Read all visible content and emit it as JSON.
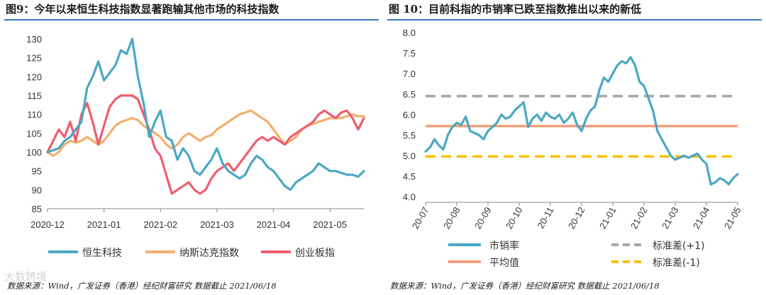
{
  "left": {
    "title": "图9：今年以来恒生科技指数显著跑输其他市场的科技指数",
    "source": "数据来源：Wind，广发证券（香港）经纪财富研究  数据截止 2021/06/18",
    "watermark": "大数跨境"
  },
  "right": {
    "title": "图 10：目前科指的市销率已跌至指数推出以来的新低",
    "source": "数据来源：Wind，广发证券（香港）经纪财富研究  数据截止 2021/06/18"
  },
  "colors": {
    "hstech": "#4aa8c4",
    "nasdaq": "#f5ae6e",
    "chinext": "#ef5d6e",
    "ps": "#4aa8c4",
    "mean": "#f0a07a",
    "plus": "#a6a6a6",
    "minus": "#f7c000"
  },
  "chart_data": [
    {
      "type": "line",
      "title": "图9：今年以来恒生科技指数显著跑输其他市场的科技指数",
      "ylim": [
        85,
        130
      ],
      "yticks": [
        85,
        90,
        95,
        100,
        105,
        110,
        115,
        120,
        125,
        130
      ],
      "xtick_labels": [
        "2020-12",
        "2021-01",
        "2021-02",
        "2021-03",
        "2021-04",
        "2021-05"
      ],
      "x_range": [
        0,
        5.6
      ],
      "legend_position": "bottom",
      "series": [
        {
          "name": "恒生科技",
          "x": [
            0,
            0.1,
            0.2,
            0.3,
            0.4,
            0.5,
            0.6,
            0.7,
            0.8,
            0.9,
            1,
            1.1,
            1.2,
            1.3,
            1.4,
            1.5,
            1.6,
            1.7,
            1.8,
            1.9,
            2,
            2.1,
            2.2,
            2.3,
            2.4,
            2.5,
            2.6,
            2.7,
            2.8,
            2.9,
            3,
            3.1,
            3.2,
            3.3,
            3.4,
            3.5,
            3.6,
            3.7,
            3.8,
            3.9,
            4,
            4.1,
            4.2,
            4.3,
            4.4,
            4.5,
            4.6,
            4.7,
            4.8,
            4.9,
            5,
            5.1,
            5.2,
            5.3,
            5.4,
            5.5,
            5.6
          ],
          "values": [
            100,
            100.5,
            101,
            103,
            104,
            106,
            108,
            117,
            120,
            124,
            119,
            121,
            123,
            127,
            126,
            130,
            120,
            113,
            104,
            108,
            111,
            104,
            103,
            98,
            101,
            99,
            95,
            94,
            96,
            98,
            101,
            97,
            95,
            94,
            93,
            94,
            97,
            99,
            98,
            96,
            95,
            93,
            91,
            90,
            92,
            93,
            94,
            95,
            97,
            96,
            95,
            95,
            94.5,
            94,
            94,
            93.5,
            95
          ]
        },
        {
          "name": "纳斯达克指数",
          "x": [
            0,
            0.1,
            0.2,
            0.3,
            0.4,
            0.5,
            0.6,
            0.7,
            0.8,
            0.9,
            1,
            1.1,
            1.2,
            1.3,
            1.4,
            1.5,
            1.6,
            1.7,
            1.8,
            1.9,
            2,
            2.1,
            2.2,
            2.3,
            2.4,
            2.5,
            2.6,
            2.7,
            2.8,
            2.9,
            3,
            3.1,
            3.2,
            3.3,
            3.4,
            3.5,
            3.6,
            3.7,
            3.8,
            3.9,
            4,
            4.1,
            4.2,
            4.3,
            4.4,
            4.5,
            4.6,
            4.7,
            4.8,
            4.9,
            5,
            5.1,
            5.2,
            5.3,
            5.4,
            5.5,
            5.6
          ],
          "values": [
            100,
            99,
            100,
            102,
            103,
            102.5,
            103,
            104,
            103,
            102,
            103,
            105,
            107,
            108,
            108.5,
            109,
            108.5,
            107,
            106,
            105,
            104,
            102,
            101,
            102,
            104,
            105,
            104,
            103,
            104,
            104.5,
            106,
            107,
            108,
            109,
            110,
            110.5,
            111,
            110,
            109,
            108,
            106,
            104,
            102,
            103,
            104,
            106,
            107,
            107.5,
            108,
            108.5,
            109,
            109,
            109,
            109.5,
            110,
            109.5,
            109.5
          ]
        },
        {
          "name": "创业板指",
          "x": [
            0,
            0.1,
            0.2,
            0.3,
            0.4,
            0.5,
            0.6,
            0.7,
            0.8,
            0.9,
            1,
            1.1,
            1.2,
            1.3,
            1.4,
            1.5,
            1.6,
            1.7,
            1.8,
            1.9,
            2,
            2.1,
            2.2,
            2.3,
            2.4,
            2.5,
            2.6,
            2.7,
            2.8,
            2.9,
            3,
            3.1,
            3.2,
            3.3,
            3.4,
            3.5,
            3.6,
            3.7,
            3.8,
            3.9,
            4,
            4.1,
            4.2,
            4.3,
            4.4,
            4.5,
            4.6,
            4.7,
            4.8,
            4.9,
            5,
            5.1,
            5.2,
            5.3,
            5.4,
            5.5,
            5.6
          ],
          "values": [
            100,
            103,
            106,
            104,
            108,
            103,
            110,
            113,
            108,
            102,
            107,
            112,
            114,
            115,
            115,
            115,
            114,
            110,
            106,
            101,
            99,
            94,
            89,
            90,
            91,
            92,
            90,
            89,
            90,
            93,
            95,
            96,
            97,
            95,
            97,
            99,
            101,
            103,
            104,
            103,
            104,
            103,
            102,
            104,
            105,
            106,
            107,
            108,
            110,
            111,
            110,
            109,
            110.5,
            111,
            109,
            106,
            109
          ]
        }
      ]
    },
    {
      "type": "line",
      "title": "图 10：目前科指的市销率已跌至指数推出以来的新低",
      "ylim": [
        4.0,
        8.0
      ],
      "yticks": [
        "4.0",
        "4.5",
        "5.0",
        "5.5",
        "6.0",
        "6.5",
        "7.0",
        "7.5",
        "8.0"
      ],
      "xtick_labels": [
        "20-07",
        "20-08",
        "20-09",
        "20-10",
        "20-11",
        "20-12",
        "21-01",
        "21-02",
        "21-03",
        "21-04",
        "21-05"
      ],
      "x_range": [
        0,
        10.5
      ],
      "legend_position": "bottom",
      "series": [
        {
          "name": "市销率",
          "x": [
            0,
            0.15,
            0.3,
            0.45,
            0.6,
            0.75,
            0.9,
            1.05,
            1.2,
            1.35,
            1.5,
            1.65,
            1.8,
            1.95,
            2.1,
            2.25,
            2.4,
            2.55,
            2.7,
            2.85,
            3,
            3.15,
            3.3,
            3.45,
            3.6,
            3.75,
            3.9,
            4.05,
            4.2,
            4.35,
            4.5,
            4.65,
            4.8,
            4.95,
            5.1,
            5.25,
            5.4,
            5.55,
            5.7,
            5.85,
            6,
            6.15,
            6.3,
            6.45,
            6.6,
            6.75,
            6.9,
            7.05,
            7.2,
            7.35,
            7.5,
            7.65,
            7.8,
            7.95,
            8.1,
            8.25,
            8.4,
            8.55,
            8.7,
            8.85,
            9,
            9.15,
            9.3,
            9.45,
            9.6,
            9.75,
            9.9,
            10.05,
            10.2,
            10.35,
            10.5
          ],
          "values": [
            5.1,
            5.2,
            5.4,
            5.25,
            5.15,
            5.5,
            5.7,
            5.8,
            5.75,
            5.95,
            5.6,
            5.55,
            5.5,
            5.4,
            5.6,
            5.7,
            5.8,
            6.0,
            5.9,
            5.95,
            6.1,
            6.2,
            6.3,
            5.7,
            5.9,
            6.0,
            5.85,
            6.05,
            5.95,
            5.9,
            6.0,
            5.8,
            5.9,
            6.05,
            5.75,
            5.6,
            5.9,
            6.1,
            6.2,
            6.6,
            6.9,
            6.8,
            7.0,
            7.2,
            7.3,
            7.25,
            7.4,
            7.2,
            6.8,
            6.7,
            6.4,
            6.1,
            5.6,
            5.4,
            5.2,
            5.0,
            4.9,
            4.95,
            5.0,
            4.95,
            5.0,
            5.05,
            4.9,
            4.8,
            4.3,
            4.35,
            4.45,
            4.4,
            4.3,
            4.45,
            4.55
          ]
        },
        {
          "name": "平均值",
          "values": [
            5.72,
            5.72
          ]
        },
        {
          "name": "标准差(+1)",
          "values": [
            6.45,
            6.45
          ]
        },
        {
          "name": "标准差(-1)",
          "values": [
            4.98,
            4.98
          ]
        }
      ]
    }
  ]
}
